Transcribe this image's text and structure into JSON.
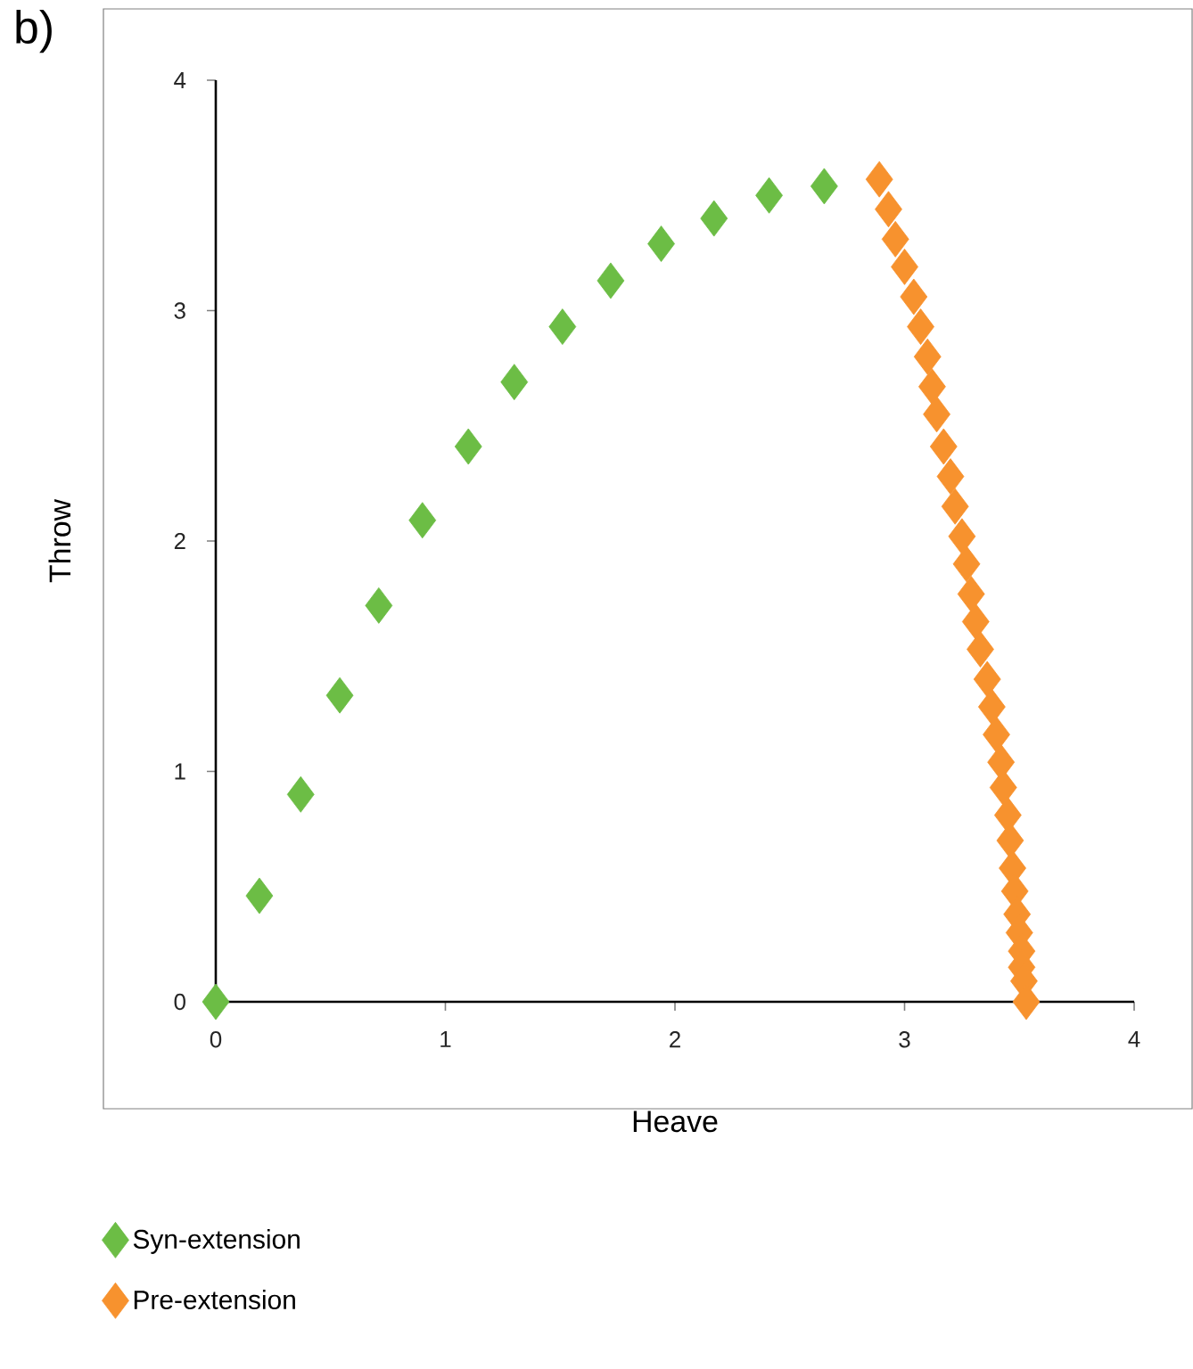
{
  "chart_data": {
    "type": "scatter",
    "xlabel": "Heave",
    "ylabel": "Throw",
    "annotations": [
      "b)"
    ],
    "xlim": [
      0,
      4
    ],
    "ylim": [
      0,
      4
    ],
    "xticks": [
      0,
      1,
      2,
      3,
      4
    ],
    "yticks": [
      0,
      1,
      2,
      3,
      4
    ],
    "grid": false,
    "legend": "bottom",
    "marker": "diamond",
    "series": [
      {
        "name": "Syn-extension",
        "color": "#6cbd45",
        "x": [
          0,
          0.19,
          0.37,
          0.54,
          0.71,
          0.9,
          1.1,
          1.3,
          1.51,
          1.72,
          1.94,
          2.17,
          2.41,
          2.65
        ],
        "values": [
          0,
          0.46,
          0.9,
          1.33,
          1.72,
          2.09,
          2.41,
          2.69,
          2.93,
          3.13,
          3.29,
          3.4,
          3.5,
          3.54
        ]
      },
      {
        "name": "Pre-extension",
        "color": "#f7922e",
        "x": [
          2.89,
          2.93,
          2.96,
          3.0,
          3.04,
          3.07,
          3.1,
          3.12,
          3.14,
          3.17,
          3.2,
          3.22,
          3.25,
          3.27,
          3.29,
          3.31,
          3.33,
          3.36,
          3.38,
          3.4,
          3.42,
          3.43,
          3.45,
          3.46,
          3.47,
          3.48,
          3.49,
          3.5,
          3.51,
          3.51,
          3.52,
          3.53
        ],
        "values": [
          3.57,
          3.44,
          3.31,
          3.19,
          3.06,
          2.93,
          2.8,
          2.67,
          2.55,
          2.41,
          2.28,
          2.15,
          2.02,
          1.9,
          1.77,
          1.65,
          1.53,
          1.4,
          1.28,
          1.16,
          1.04,
          0.93,
          0.81,
          0.7,
          0.58,
          0.48,
          0.38,
          0.3,
          0.22,
          0.15,
          0.09,
          0
        ]
      }
    ]
  }
}
